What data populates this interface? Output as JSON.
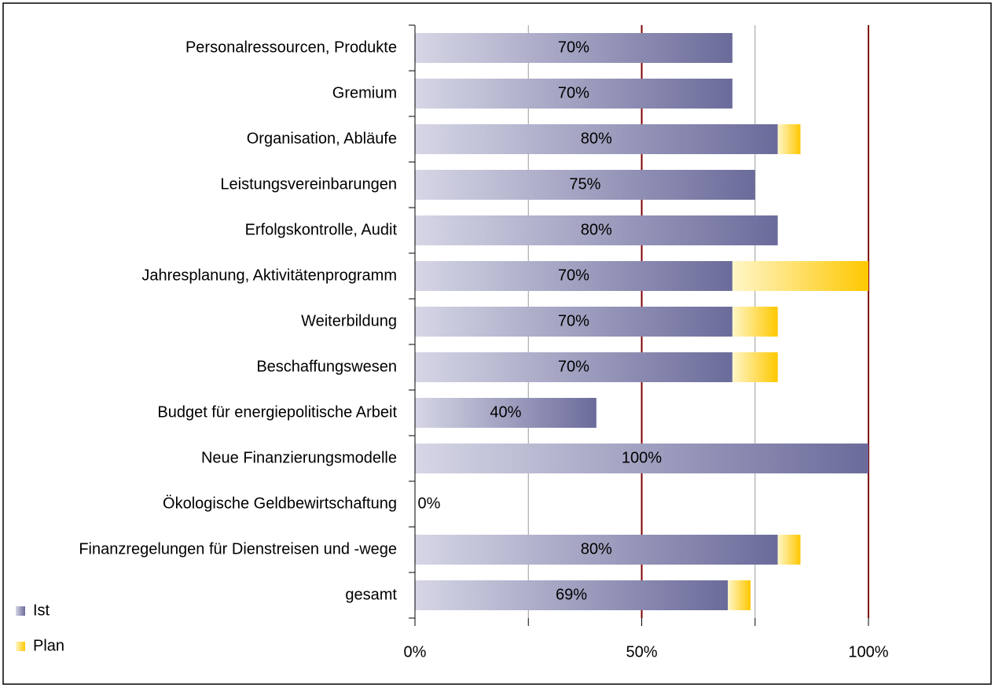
{
  "chart_data": {
    "type": "stacked-hbar",
    "categories": [
      "Personalressourcen, Produkte",
      "Gremium",
      "Organisation, Abläufe",
      "Leistungsvereinbarungen",
      "Erfolgskontrolle, Audit",
      "Jahresplanung, Aktivitätenprogramm",
      "Weiterbildung",
      "Beschaffungswesen",
      "Budget für energiepolitische Arbeit",
      "Neue Finanzierungsmodelle",
      "Ökologische Geldbewirtschaftung",
      "Finanzregelungen für Dienstreisen und -wege",
      "gesamt"
    ],
    "series": [
      {
        "name": "Ist",
        "color": "#6b6b9b",
        "light_color": "#d6d6e6",
        "values": [
          70,
          70,
          80,
          75,
          80,
          70,
          70,
          70,
          40,
          100,
          0,
          80,
          69
        ],
        "value_labels": [
          "70%",
          "70%",
          "80%",
          "75%",
          "80%",
          "70%",
          "70%",
          "70%",
          "40%",
          "100%",
          "0%",
          "80%",
          "69%"
        ]
      },
      {
        "name": "Plan",
        "color": "#ffc800",
        "light_color": "#fff6c8",
        "values": [
          0,
          0,
          5,
          0,
          0,
          30,
          10,
          10,
          0,
          0,
          0,
          5,
          5
        ]
      }
    ],
    "xlim": [
      0,
      100
    ],
    "xticks": [
      {
        "value": 0,
        "label": "0%"
      },
      {
        "value": 50,
        "label": "50%"
      },
      {
        "value": 100,
        "label": "100%"
      }
    ],
    "minor_xticks": [
      25,
      75
    ],
    "grid": true,
    "grid_color": "#800000",
    "minor_grid_color": "#999999",
    "legend": "bottom-left"
  }
}
